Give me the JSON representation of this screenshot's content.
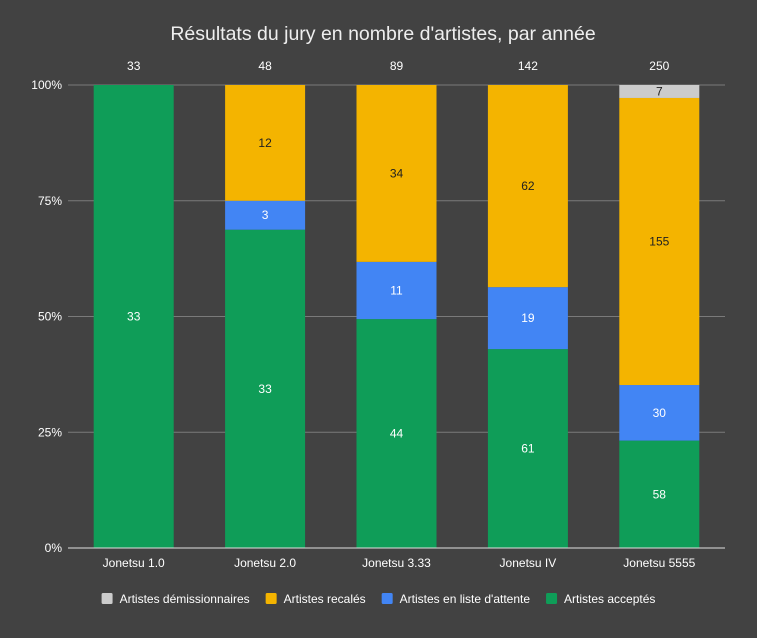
{
  "chart_data": {
    "type": "bar",
    "stacked": true,
    "normalized": true,
    "title": "Résultats du jury en nombre d'artistes, par année",
    "categories": [
      "Jonetsu 1.0",
      "Jonetsu 2.0",
      "Jonetsu 3.33",
      "Jonetsu IV",
      "Jonetsu 5555"
    ],
    "totals": [
      "33",
      "48",
      "89",
      "142",
      "250"
    ],
    "ylim": [
      0,
      100
    ],
    "yticks": [
      "0%",
      "25%",
      "50%",
      "75%",
      "100%"
    ],
    "grid": true,
    "legend_position": "bottom",
    "series": [
      {
        "name": "Artistes acceptés",
        "color": "#0f9d58",
        "label_color": "#ffffff",
        "values": [
          33,
          33,
          44,
          61,
          58
        ]
      },
      {
        "name": "Artistes en liste d'attente",
        "color": "#4285f4",
        "label_color": "#ffffff",
        "values": [
          0,
          3,
          11,
          19,
          30
        ]
      },
      {
        "name": "Artistes recalés",
        "color": "#f4b400",
        "label_color": "#212121",
        "values": [
          0,
          12,
          34,
          62,
          155
        ]
      },
      {
        "name": "Artistes démissionnaires",
        "color": "#cccccc",
        "label_color": "#212121",
        "values": [
          0,
          0,
          0,
          0,
          7
        ]
      }
    ],
    "legend_order": [
      3,
      2,
      1,
      0
    ]
  }
}
